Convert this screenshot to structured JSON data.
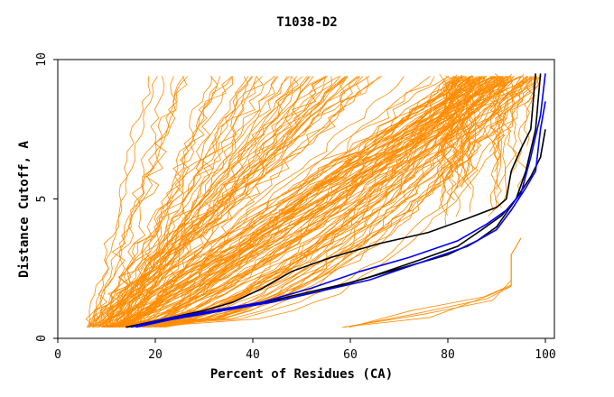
{
  "chart_data": {
    "type": "line",
    "title": "T1038-D2",
    "xlabel": "Percent of Residues (CA)",
    "ylabel": "Distance Cutoff, A",
    "xlim": [
      0,
      100
    ],
    "ylim": [
      0,
      10
    ],
    "x_ticks": [
      "0",
      "20",
      "40",
      "60",
      "80",
      "100"
    ],
    "y_ticks": [
      "0",
      "5",
      "10"
    ],
    "grid": false,
    "legend": "none",
    "colors": {
      "orange": "#ff8c00",
      "blue": "#0000ff",
      "black": "#000000",
      "frame": "#000000",
      "background": "#ffffff"
    },
    "series": [
      {
        "color": "#000000",
        "x": [
          14,
          20,
          30,
          40,
          50,
          60,
          70,
          80,
          86,
          90,
          92,
          94,
          96,
          98,
          99
        ],
        "y": [
          0.4,
          0.6,
          0.9,
          1.2,
          1.6,
          2.0,
          2.5,
          3.0,
          3.5,
          4.0,
          4.5,
          5.0,
          6.0,
          7.5,
          9.5
        ]
      },
      {
        "color": "#000000",
        "x": [
          14,
          22,
          30,
          36,
          42,
          48,
          56,
          66,
          76,
          84,
          90,
          92,
          93,
          95,
          97,
          98
        ],
        "y": [
          0.4,
          0.7,
          1.0,
          1.3,
          1.8,
          2.4,
          2.9,
          3.4,
          3.8,
          4.3,
          4.7,
          5.0,
          6.0,
          6.8,
          7.5,
          9.5
        ]
      },
      {
        "color": "#000000",
        "x": [
          14,
          24,
          34,
          44,
          54,
          64,
          74,
          82,
          87,
          91,
          94,
          97,
          99,
          100
        ],
        "y": [
          0.4,
          0.7,
          1.0,
          1.3,
          1.7,
          2.2,
          2.8,
          3.3,
          3.9,
          4.4,
          5.0,
          5.8,
          6.5,
          7.5
        ]
      },
      {
        "color": "#0000ff",
        "x": [
          15,
          22,
          32,
          42,
          52,
          62,
          72,
          82,
          88,
          92,
          95,
          97,
          99,
          100
        ],
        "y": [
          0.4,
          0.7,
          1.0,
          1.3,
          1.8,
          2.4,
          2.9,
          3.5,
          4.1,
          4.6,
          5.2,
          6.5,
          8.0,
          9.5
        ]
      },
      {
        "color": "#0000ff",
        "x": [
          16,
          24,
          34,
          44,
          54,
          64,
          74,
          84,
          90,
          93,
          96,
          98,
          99,
          100
        ],
        "y": [
          0.4,
          0.7,
          1.0,
          1.3,
          1.7,
          2.1,
          2.7,
          3.3,
          3.9,
          4.6,
          5.4,
          6.0,
          7.5,
          8.5
        ]
      }
    ]
  }
}
